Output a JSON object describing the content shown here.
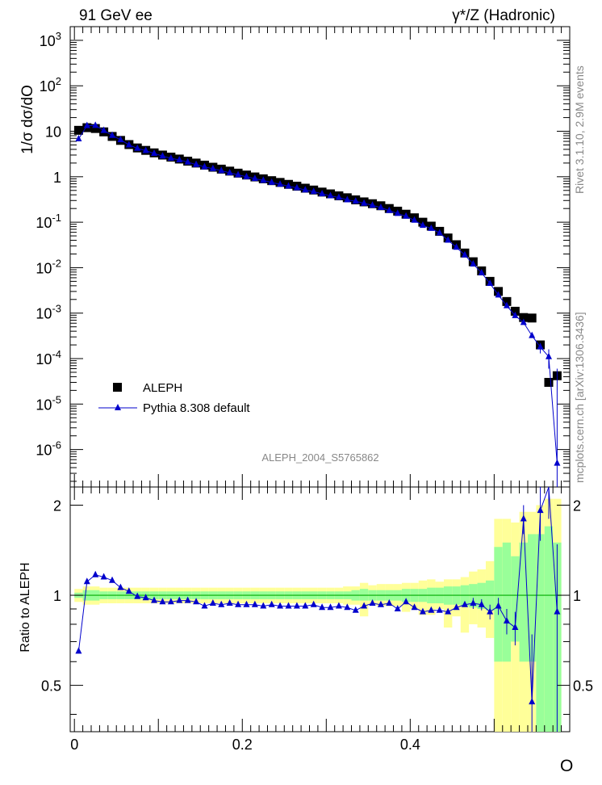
{
  "chart_data": {
    "type": "scatter",
    "title_left": "91 GeV ee",
    "title_right": "γ*/Z (Hadronic)",
    "ylabel": "1/σ  dσ/dO",
    "ylabel_ratio": "Ratio to ALEPH",
    "xlabel": "O",
    "watermark": "ALEPH_2004_S5765862",
    "side_text_1": "Rivet 3.1.10, 2.9M events",
    "side_text_2": "mcplots.cern.ch [arXiv:1306.3436]",
    "log_y": true,
    "xlim": [
      -0.005,
      0.59
    ],
    "ylim": [
      1.5e-07,
      2000
    ],
    "ratio_ylim": [
      0.35,
      2.3
    ],
    "x_ticks": [
      "0",
      "0.2",
      "0.4"
    ],
    "y_ticks": [
      "10^-6",
      "10^-5",
      "10^-4",
      "10^-3",
      "10^-2",
      "10^-1",
      "1",
      "10",
      "10^2",
      "10^3"
    ],
    "ratio_ticks": [
      "0.5",
      "1",
      "2"
    ],
    "legend_placement": "lower-left",
    "colors": {
      "data": "#000000",
      "mc": "#0000cc",
      "band_inner": "#99ff99",
      "band_outer": "#ffff99",
      "ref_line": "#00aa00"
    },
    "x": [
      0.005,
      0.015,
      0.025,
      0.035,
      0.045,
      0.055,
      0.065,
      0.075,
      0.085,
      0.095,
      0.105,
      0.115,
      0.125,
      0.135,
      0.145,
      0.155,
      0.165,
      0.175,
      0.185,
      0.195,
      0.205,
      0.215,
      0.225,
      0.235,
      0.245,
      0.255,
      0.265,
      0.275,
      0.285,
      0.295,
      0.305,
      0.315,
      0.325,
      0.335,
      0.345,
      0.355,
      0.365,
      0.375,
      0.385,
      0.395,
      0.405,
      0.415,
      0.425,
      0.435,
      0.445,
      0.455,
      0.465,
      0.475,
      0.485,
      0.495,
      0.505,
      0.515,
      0.525,
      0.535,
      0.545,
      0.555,
      0.565,
      0.575
    ],
    "series": [
      {
        "name": "ALEPH",
        "values": [
          10.5,
          12.0,
          11.5,
          9.7,
          7.7,
          6.3,
          5.1,
          4.3,
          3.8,
          3.35,
          3.0,
          2.7,
          2.45,
          2.2,
          2.0,
          1.8,
          1.62,
          1.47,
          1.33,
          1.2,
          1.09,
          0.99,
          0.9,
          0.82,
          0.75,
          0.68,
          0.62,
          0.56,
          0.51,
          0.46,
          0.42,
          0.38,
          0.345,
          0.31,
          0.28,
          0.255,
          0.23,
          0.2,
          0.175,
          0.15,
          0.125,
          0.1,
          0.082,
          0.063,
          0.045,
          0.032,
          0.021,
          0.0135,
          0.0085,
          0.005,
          0.003,
          0.0018,
          0.0011,
          0.0008,
          0.00078,
          0.0002,
          3e-05,
          4.2e-05
        ]
      },
      {
        "name": "Pythia 8.308 default",
        "values": [
          6.8,
          13.3,
          13.4,
          10.4,
          8.1,
          6.5,
          5.0,
          4.2,
          3.75,
          3.25,
          2.85,
          2.55,
          2.35,
          2.1,
          1.85,
          1.65,
          1.5,
          1.36,
          1.22,
          1.1,
          1.0,
          0.91,
          0.83,
          0.75,
          0.68,
          0.62,
          0.57,
          0.51,
          0.47,
          0.42,
          0.38,
          0.35,
          0.31,
          0.29,
          0.26,
          0.235,
          0.21,
          0.18,
          0.155,
          0.135,
          0.11,
          0.085,
          0.073,
          0.058,
          0.04,
          0.028,
          0.019,
          0.012,
          0.0077,
          0.0045,
          0.0025,
          0.00145,
          0.00088,
          0.00062,
          0.00032,
          0.00018,
          0.00011,
          5e-07
        ],
        "ratio": [
          0.65,
          1.11,
          1.17,
          1.15,
          1.12,
          1.06,
          1.03,
          0.99,
          0.98,
          0.96,
          0.95,
          0.95,
          0.96,
          0.96,
          0.95,
          0.92,
          0.94,
          0.93,
          0.94,
          0.93,
          0.93,
          0.93,
          0.92,
          0.93,
          0.92,
          0.92,
          0.92,
          0.92,
          0.93,
          0.91,
          0.91,
          0.92,
          0.91,
          0.89,
          0.92,
          0.94,
          0.93,
          0.94,
          0.9,
          0.95,
          0.91,
          0.88,
          0.89,
          0.89,
          0.88,
          0.91,
          0.93,
          0.94,
          0.93,
          0.88,
          0.92,
          0.82,
          0.78,
          1.8,
          0.44,
          1.92,
          2.3,
          0.88
        ],
        "ratio_err": [
          0.01,
          0.01,
          0.01,
          0.01,
          0.01,
          0.01,
          0.01,
          0.01,
          0.01,
          0.01,
          0.01,
          0.01,
          0.01,
          0.01,
          0.01,
          0.01,
          0.01,
          0.01,
          0.01,
          0.01,
          0.01,
          0.01,
          0.01,
          0.01,
          0.01,
          0.01,
          0.01,
          0.01,
          0.01,
          0.01,
          0.01,
          0.01,
          0.01,
          0.01,
          0.01,
          0.01,
          0.01,
          0.01,
          0.01,
          0.01,
          0.02,
          0.02,
          0.02,
          0.02,
          0.02,
          0.03,
          0.03,
          0.04,
          0.04,
          0.05,
          0.06,
          0.08,
          0.1,
          0.2,
          0.3,
          0.4,
          0.5,
          0.6
        ]
      }
    ],
    "band_inner": [
      [
        0.98,
        1.02
      ],
      [
        0.96,
        1.04
      ],
      [
        0.96,
        1.04
      ],
      [
        0.97,
        1.03
      ],
      [
        0.97,
        1.03
      ],
      [
        0.97,
        1.03
      ],
      [
        0.97,
        1.03
      ],
      [
        0.97,
        1.03
      ],
      [
        0.97,
        1.03
      ],
      [
        0.97,
        1.03
      ],
      [
        0.97,
        1.03
      ],
      [
        0.97,
        1.03
      ],
      [
        0.97,
        1.03
      ],
      [
        0.97,
        1.03
      ],
      [
        0.97,
        1.03
      ],
      [
        0.97,
        1.03
      ],
      [
        0.97,
        1.03
      ],
      [
        0.97,
        1.03
      ],
      [
        0.97,
        1.03
      ],
      [
        0.97,
        1.03
      ],
      [
        0.97,
        1.03
      ],
      [
        0.97,
        1.03
      ],
      [
        0.97,
        1.03
      ],
      [
        0.97,
        1.03
      ],
      [
        0.97,
        1.03
      ],
      [
        0.97,
        1.03
      ],
      [
        0.97,
        1.03
      ],
      [
        0.97,
        1.03
      ],
      [
        0.97,
        1.03
      ],
      [
        0.97,
        1.03
      ],
      [
        0.97,
        1.03
      ],
      [
        0.97,
        1.03
      ],
      [
        0.97,
        1.03
      ],
      [
        0.96,
        1.04
      ],
      [
        0.96,
        1.05
      ],
      [
        0.96,
        1.04
      ],
      [
        0.96,
        1.04
      ],
      [
        0.96,
        1.04
      ],
      [
        0.96,
        1.04
      ],
      [
        0.95,
        1.05
      ],
      [
        0.95,
        1.05
      ],
      [
        0.95,
        1.05
      ],
      [
        0.94,
        1.06
      ],
      [
        0.94,
        1.06
      ],
      [
        0.93,
        1.07
      ],
      [
        0.93,
        1.07
      ],
      [
        0.92,
        1.08
      ],
      [
        0.91,
        1.09
      ],
      [
        0.9,
        1.1
      ],
      [
        0.89,
        1.12
      ],
      [
        0.6,
        1.45
      ],
      [
        0.6,
        1.5
      ],
      [
        0.7,
        1.35
      ],
      [
        0.6,
        1.5
      ],
      [
        0.6,
        1.6
      ],
      [
        0.35,
        1.6
      ],
      [
        0.35,
        1.7
      ],
      [
        0.35,
        1.5
      ]
    ],
    "band_outer": [
      [
        0.95,
        1.05
      ],
      [
        0.93,
        1.07
      ],
      [
        0.93,
        1.07
      ],
      [
        0.94,
        1.06
      ],
      [
        0.94,
        1.06
      ],
      [
        0.94,
        1.06
      ],
      [
        0.94,
        1.06
      ],
      [
        0.94,
        1.06
      ],
      [
        0.94,
        1.06
      ],
      [
        0.94,
        1.06
      ],
      [
        0.94,
        1.06
      ],
      [
        0.94,
        1.06
      ],
      [
        0.94,
        1.06
      ],
      [
        0.94,
        1.06
      ],
      [
        0.94,
        1.06
      ],
      [
        0.94,
        1.06
      ],
      [
        0.94,
        1.06
      ],
      [
        0.94,
        1.06
      ],
      [
        0.94,
        1.06
      ],
      [
        0.94,
        1.06
      ],
      [
        0.94,
        1.06
      ],
      [
        0.94,
        1.06
      ],
      [
        0.94,
        1.06
      ],
      [
        0.94,
        1.06
      ],
      [
        0.94,
        1.06
      ],
      [
        0.94,
        1.06
      ],
      [
        0.94,
        1.06
      ],
      [
        0.94,
        1.06
      ],
      [
        0.94,
        1.06
      ],
      [
        0.94,
        1.06
      ],
      [
        0.94,
        1.06
      ],
      [
        0.94,
        1.06
      ],
      [
        0.93,
        1.07
      ],
      [
        0.93,
        1.07
      ],
      [
        0.85,
        1.1
      ],
      [
        0.93,
        1.08
      ],
      [
        0.92,
        1.09
      ],
      [
        0.92,
        1.09
      ],
      [
        0.92,
        1.09
      ],
      [
        0.88,
        1.1
      ],
      [
        0.9,
        1.1
      ],
      [
        0.86,
        1.12
      ],
      [
        0.86,
        1.13
      ],
      [
        0.9,
        1.11
      ],
      [
        0.78,
        1.13
      ],
      [
        0.85,
        1.13
      ],
      [
        0.75,
        1.15
      ],
      [
        0.8,
        1.2
      ],
      [
        0.78,
        1.22
      ],
      [
        0.72,
        1.3
      ],
      [
        0.35,
        1.8
      ],
      [
        0.35,
        1.8
      ],
      [
        0.35,
        1.75
      ],
      [
        0.35,
        1.9
      ],
      [
        0.35,
        1.9
      ],
      [
        0.35,
        2.0
      ],
      [
        0.35,
        2.1
      ],
      [
        0.35,
        2.1
      ]
    ],
    "data_err": [
      0.02,
      0.02,
      0.02,
      0.02,
      0.02,
      0.02,
      0.02,
      0.02,
      0.02,
      0.02,
      0.02,
      0.02,
      0.02,
      0.02,
      0.02,
      0.02,
      0.02,
      0.02,
      0.02,
      0.02,
      0.02,
      0.02,
      0.02,
      0.02,
      0.02,
      0.02,
      0.02,
      0.02,
      0.02,
      0.02,
      0.02,
      0.02,
      0.02,
      0.02,
      0.03,
      0.03,
      0.03,
      0.03,
      0.03,
      0.03,
      0.03,
      0.04,
      0.04,
      0.04,
      0.05,
      0.06,
      0.07,
      0.08,
      0.09,
      0.12,
      0.3,
      0.35,
      0.3,
      0.4,
      0.5,
      0.6,
      0.7,
      0.8
    ]
  }
}
